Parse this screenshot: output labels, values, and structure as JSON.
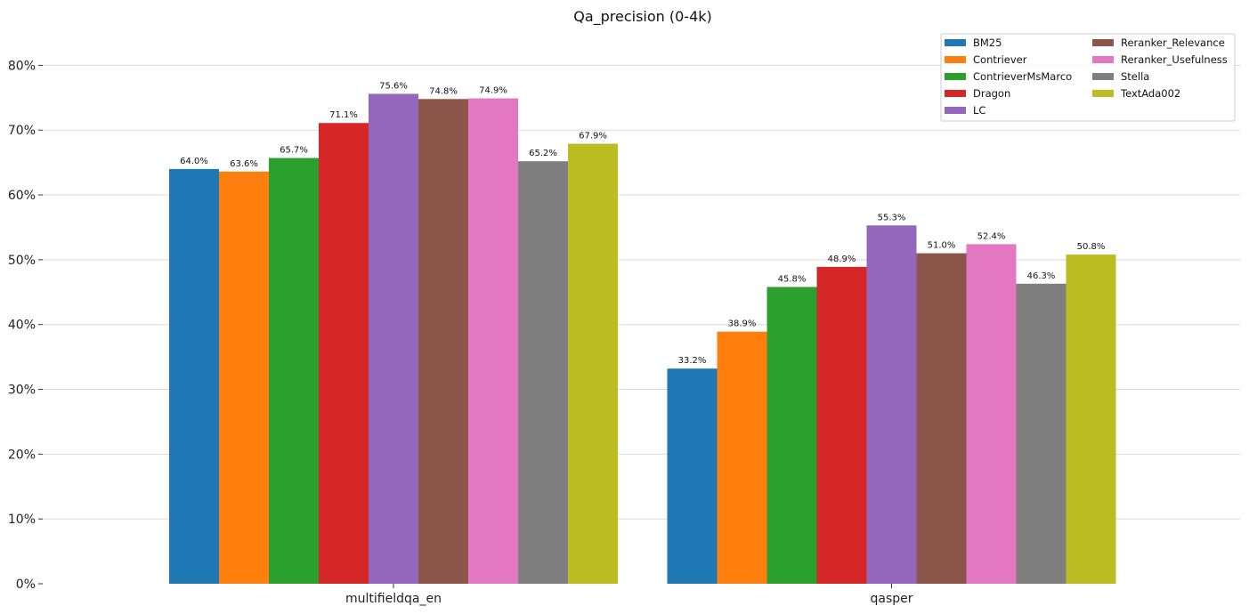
{
  "chart_data": {
    "type": "bar",
    "title": "Qa_precision (0-4k)",
    "xlabel": "",
    "ylabel": "",
    "categories": [
      "multifieldqa_en",
      "qasper"
    ],
    "ylim": [
      0,
      85
    ],
    "yticks": [
      0,
      10,
      20,
      30,
      40,
      50,
      60,
      70,
      80
    ],
    "ytick_labels": [
      "0%",
      "10%",
      "20%",
      "30%",
      "40%",
      "50%",
      "60%",
      "70%",
      "80%"
    ],
    "grid": "horizontal",
    "legend_position": "top-right",
    "legend_columns": 2,
    "series": [
      {
        "name": "BM25",
        "color": "#1f77b4",
        "values": [
          64.0,
          33.2
        ],
        "labels": [
          "64.0%",
          "33.2%"
        ]
      },
      {
        "name": "Contriever",
        "color": "#ff7f0e",
        "values": [
          63.6,
          38.9
        ],
        "labels": [
          "63.6%",
          "38.9%"
        ]
      },
      {
        "name": "ContrieverMsMarco",
        "color": "#2ca02c",
        "values": [
          65.7,
          45.8
        ],
        "labels": [
          "65.7%",
          "45.8%"
        ]
      },
      {
        "name": "Dragon",
        "color": "#d62728",
        "values": [
          71.1,
          48.9
        ],
        "labels": [
          "71.1%",
          "48.9%"
        ]
      },
      {
        "name": "LC",
        "color": "#9467bd",
        "values": [
          75.6,
          55.3
        ],
        "labels": [
          "75.6%",
          "55.3%"
        ]
      },
      {
        "name": "Reranker_Relevance",
        "color": "#8c564b",
        "values": [
          74.8,
          51.0
        ],
        "labels": [
          "74.8%",
          "51.0%"
        ]
      },
      {
        "name": "Reranker_Usefulness",
        "color": "#e377c2",
        "values": [
          74.9,
          52.4
        ],
        "labels": [
          "74.9%",
          "52.4%"
        ]
      },
      {
        "name": "Stella",
        "color": "#7f7f7f",
        "values": [
          65.2,
          46.3
        ],
        "labels": [
          "65.2%",
          "46.3%"
        ]
      },
      {
        "name": "TextAda002",
        "color": "#bcbd22",
        "values": [
          67.9,
          50.8
        ],
        "labels": [
          "67.9%",
          "50.8%"
        ]
      }
    ]
  }
}
